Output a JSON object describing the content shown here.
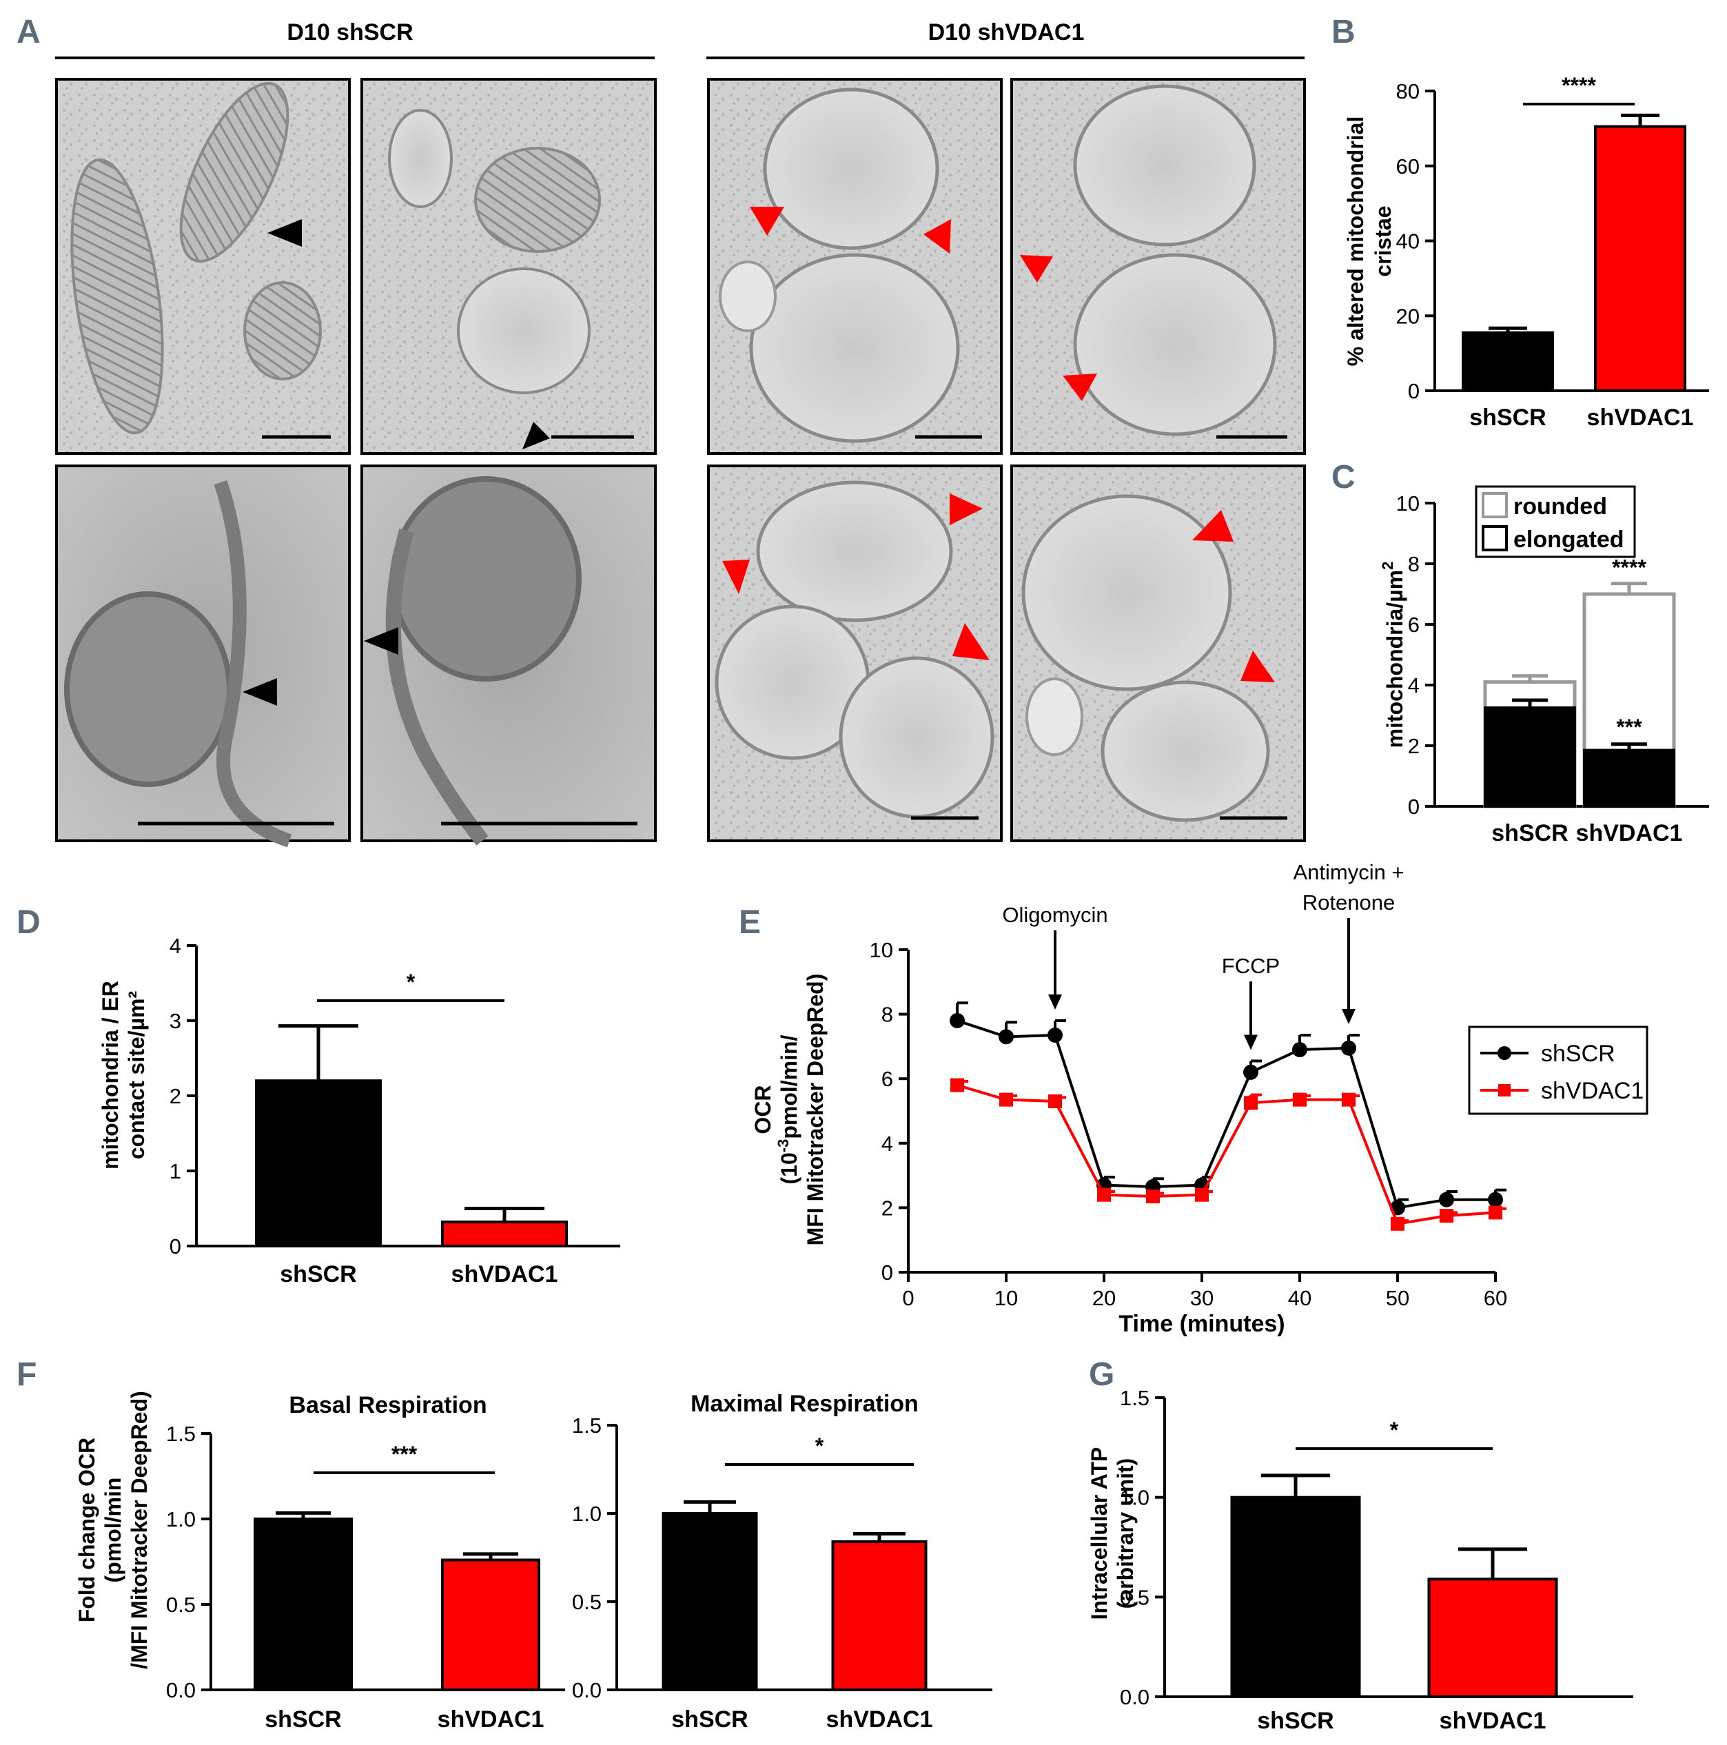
{
  "panel_letters": {
    "a": "A",
    "b": "B",
    "c": "C",
    "d": "D",
    "e": "E",
    "f": "F",
    "g": "G"
  },
  "panel_a": {
    "group_left": "D10 shSCR",
    "group_right": "D10 shVDAC1",
    "micrographs": [
      {
        "group": "shSCR",
        "row": 1,
        "col": 1,
        "arrowhead": "black",
        "arrowheads": 1
      },
      {
        "group": "shSCR",
        "row": 1,
        "col": 2,
        "arrowhead": "black",
        "arrowheads": 1
      },
      {
        "group": "shSCR",
        "row": 2,
        "col": 1,
        "arrowhead": "black",
        "arrowheads": 1
      },
      {
        "group": "shSCR",
        "row": 2,
        "col": 2,
        "arrowhead": "black",
        "arrowheads": 1
      },
      {
        "group": "shVDAC1",
        "row": 1,
        "col": 1,
        "arrowhead": "red",
        "arrowheads": 2
      },
      {
        "group": "shVDAC1",
        "row": 1,
        "col": 2,
        "arrowhead": "red",
        "arrowheads": 2
      },
      {
        "group": "shVDAC1",
        "row": 2,
        "col": 1,
        "arrowhead": "red",
        "arrowheads": 3
      },
      {
        "group": "shVDAC1",
        "row": 2,
        "col": 2,
        "arrowhead": "red",
        "arrowheads": 2
      }
    ]
  },
  "colors": {
    "shSCR": "#000000",
    "shVDAC1": "#ff0000",
    "rounded": "#999999",
    "axis": "#000000"
  },
  "chart_data": [
    {
      "id": "B",
      "type": "bar",
      "categories": [
        "shSCR",
        "shVDAC1"
      ],
      "values": [
        15.5,
        70.5
      ],
      "errors": [
        1.2,
        3.0
      ],
      "ylabel": "% altered mitochondrial cristae",
      "ylim": [
        0,
        80
      ],
      "yticks": [
        0,
        20,
        40,
        60,
        80
      ],
      "ytick_labels": [
        "0",
        "20",
        "40",
        "60",
        "80"
      ],
      "significance": "****"
    },
    {
      "id": "C",
      "type": "bar",
      "categories": [
        "shSCR",
        "shVDAC1"
      ],
      "ylabel": "mitochondria/µm",
      "ylabel_sup": "2",
      "ylim": [
        0,
        10
      ],
      "yticks": [
        0,
        2,
        4,
        6,
        8,
        10
      ],
      "ytick_labels": [
        "0",
        "2",
        "4",
        "6",
        "8",
        "10"
      ],
      "series": [
        {
          "name": "rounded",
          "values": [
            4.1,
            7.0
          ],
          "errors": [
            0.2,
            0.35
          ],
          "style": "outline"
        },
        {
          "name": "elongated",
          "values": [
            3.25,
            1.85
          ],
          "errors": [
            0.25,
            0.2
          ],
          "style": "filled"
        }
      ],
      "legend": [
        "rounded",
        "elongated"
      ],
      "significance": {
        "total_shVDAC1": "****",
        "elongated_shVDAC1": "***"
      }
    },
    {
      "id": "D",
      "type": "bar",
      "categories": [
        "shSCR",
        "shVDAC1"
      ],
      "values": [
        2.2,
        0.32
      ],
      "errors": [
        0.73,
        0.18
      ],
      "ylabel_lines": [
        "mitochondria / ER",
        "contact site/µm²"
      ],
      "ylim": [
        0,
        4
      ],
      "yticks": [
        0,
        1,
        2,
        3,
        4
      ],
      "ytick_labels": [
        "0",
        "1",
        "2",
        "3",
        "4"
      ],
      "significance": "*"
    },
    {
      "id": "E",
      "type": "line",
      "xlabel": "Time (minutes)",
      "ylabel_lines": [
        "OCR",
        "(10",
        "-3",
        "pmol/min/",
        "MFI Mitotracker DeepRed)"
      ],
      "xlim": [
        0,
        60
      ],
      "xticks": [
        0,
        10,
        20,
        30,
        40,
        50,
        60
      ],
      "xtick_labels": [
        "0",
        "10",
        "20",
        "30",
        "40",
        "50",
        "60"
      ],
      "ylim": [
        0,
        10
      ],
      "yticks": [
        0,
        2,
        4,
        6,
        8,
        10
      ],
      "ytick_labels": [
        "0",
        "2",
        "4",
        "6",
        "8",
        "10"
      ],
      "x": [
        5,
        10,
        15,
        20,
        25,
        30,
        35,
        40,
        45,
        50,
        55,
        60
      ],
      "series": [
        {
          "name": "shSCR",
          "values": [
            7.8,
            7.3,
            7.35,
            2.7,
            2.65,
            2.7,
            6.2,
            6.9,
            6.95,
            2.0,
            2.25,
            2.25
          ],
          "errors": [
            0.55,
            0.45,
            0.45,
            0.25,
            0.25,
            0.25,
            0.35,
            0.45,
            0.4,
            0.25,
            0.25,
            0.3
          ],
          "marker": "circle"
        },
        {
          "name": "shVDAC1",
          "values": [
            5.8,
            5.35,
            5.3,
            2.4,
            2.35,
            2.4,
            5.25,
            5.35,
            5.35,
            1.5,
            1.75,
            1.85
          ],
          "errors": [
            0.12,
            0.12,
            0.12,
            0.1,
            0.1,
            0.1,
            0.25,
            0.12,
            0.12,
            0.1,
            0.1,
            0.12
          ],
          "marker": "square"
        }
      ],
      "annotations": [
        {
          "lines": [
            "Oligomycin"
          ],
          "x": 15
        },
        {
          "lines": [
            "FCCP"
          ],
          "x": 35
        },
        {
          "lines": [
            "Antimycin +",
            "Rotenone"
          ],
          "x": 45
        }
      ]
    },
    {
      "id": "F1",
      "type": "bar",
      "title": "Basal Respiration",
      "categories": [
        "shSCR",
        "shVDAC1"
      ],
      "values": [
        1.0,
        0.76
      ],
      "errors": [
        0.035,
        0.035
      ],
      "ylabel_lines": [
        "Fold change OCR",
        "(pmol/min",
        "/MFI Mitotracker DeepRed)"
      ],
      "ylim": [
        0,
        1.5
      ],
      "yticks": [
        0,
        0.5,
        1.0,
        1.5
      ],
      "ytick_labels": [
        "0.0",
        "0.5",
        "1.0",
        "1.5"
      ],
      "significance": "***"
    },
    {
      "id": "F2",
      "type": "bar",
      "title": "Maximal Respiration",
      "categories": [
        "shSCR",
        "shVDAC1"
      ],
      "values": [
        1.0,
        0.84
      ],
      "errors": [
        0.065,
        0.045
      ],
      "ylim": [
        0,
        1.5
      ],
      "yticks": [
        0,
        0.5,
        1.0,
        1.5
      ],
      "ytick_labels": [
        "0.0",
        "0.5",
        "1.0",
        "1.5"
      ],
      "significance": "*"
    },
    {
      "id": "G",
      "type": "bar",
      "categories": [
        "shSCR",
        "shVDAC1"
      ],
      "values": [
        1.0,
        0.59
      ],
      "errors": [
        0.11,
        0.15
      ],
      "ylabel_lines": [
        "Intracellular ATP",
        "(arbitrary unit)"
      ],
      "ylim": [
        0,
        1.5
      ],
      "yticks": [
        0,
        0.5,
        1.0,
        1.5
      ],
      "ytick_labels": [
        "0.0",
        "0.5",
        "1.0",
        "1.5"
      ],
      "significance": "*"
    }
  ]
}
